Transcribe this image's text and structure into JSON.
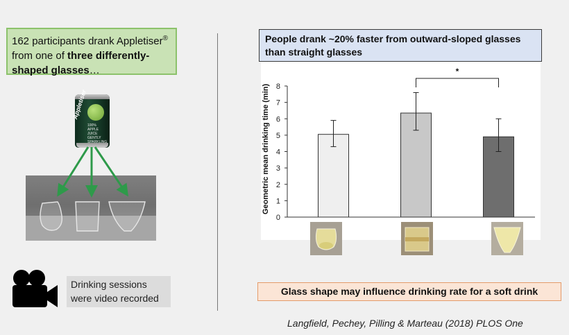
{
  "left_panel": {
    "intro_text_1": "162 participants drank Appletiser",
    "intro_reg": "®",
    "intro_text_2": "from one of",
    "intro_bold_1": "three differently-",
    "intro_bold_2": "shaped glasses",
    "intro_text_3": "…",
    "can_brand": "Appletiser",
    "can_text": "100%\nAPPLE JUICE\nGENTLY\nSPARKLING",
    "video_text_1": "Drinking sessions",
    "video_text_2": "were video recorded"
  },
  "right_panel": {
    "headline": "People drank ~20% faster from outward-sloped glasses than straight glasses",
    "conclusion": "Glass shape may influence drinking rate for a soft drink",
    "citation": "Langfield, Pechey, Pilling & Marteau (2018) PLOS One"
  },
  "colors": {
    "green_arrow": "#2e9a4a",
    "bar_colors": [
      "#efefef",
      "#c8c8c8",
      "#6e6e6e"
    ]
  },
  "chart_data": {
    "type": "bar",
    "title": "",
    "xlabel": "",
    "ylabel": "Geometric mean drinking time (min)",
    "ylim": [
      0,
      8
    ],
    "yticks": [
      "0",
      "1",
      "2",
      "3",
      "4",
      "5",
      "6",
      "7",
      "8"
    ],
    "categories": [
      "Tulip glass",
      "Straight glass",
      "Outward-sloped glass"
    ],
    "values": [
      5.05,
      6.35,
      4.9
    ],
    "error_low": [
      4.3,
      5.3,
      4.0
    ],
    "error_high": [
      5.9,
      7.6,
      6.0
    ],
    "significance": {
      "from": 1,
      "to": 2,
      "label": "*"
    }
  }
}
